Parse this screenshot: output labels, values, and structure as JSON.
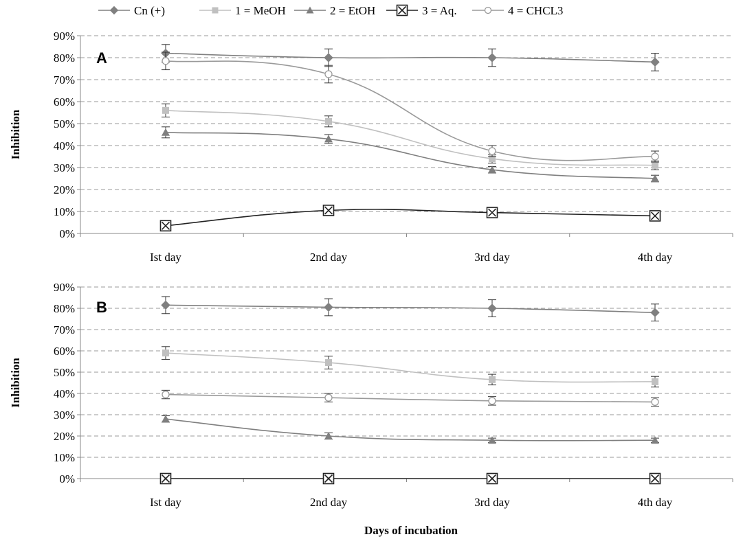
{
  "chart_data": {
    "type": "line",
    "xlabel": "Days of incubation",
    "legend": {
      "position": "top",
      "entries": [
        {
          "label": "Cn (+)",
          "marker": "diamond",
          "color": "#808080"
        },
        {
          "label": "1 = MeOH",
          "marker": "square",
          "color": "#c0c0c0"
        },
        {
          "label": "2 = EtOH",
          "marker": "triangle",
          "color": "#7f7f7f"
        },
        {
          "label": "3 = Aq.",
          "marker": "boxed-x",
          "color": "#3a3a3a"
        },
        {
          "label": "4 = CHCL3",
          "marker": "circle",
          "color": "#9a9a9a"
        }
      ]
    },
    "categories": [
      "Ist day",
      "2nd day",
      "3rd day",
      "4th day"
    ],
    "ylim": [
      0,
      90
    ],
    "ytick_labels": [
      "0%",
      "10%",
      "20%",
      "30%",
      "40%",
      "50%",
      "60%",
      "70%",
      "80%",
      "90%"
    ],
    "grid": "horizontal dashed",
    "panels": [
      {
        "letter": "A",
        "ylabel": "Inhibition",
        "series": [
          {
            "name": "Cn (+)",
            "values": [
              82,
              80,
              80,
              78
            ],
            "errors": [
              4,
              4,
              4,
              4
            ]
          },
          {
            "name": "1 = MeOH",
            "values": [
              56,
              51,
              34,
              31
            ],
            "errors": [
              3,
              2.5,
              2,
              2
            ]
          },
          {
            "name": "2 = EtOH",
            "values": [
              46,
              43,
              29,
              25
            ],
            "errors": [
              2.5,
              2,
              1.5,
              1.5
            ]
          },
          {
            "name": "3 = Aq.",
            "values": [
              3.5,
              10.5,
              9.5,
              8
            ],
            "errors": [
              0,
              0,
              0,
              0
            ]
          },
          {
            "name": "4 = CHCL3",
            "values": [
              78.5,
              72.5,
              37.5,
              35
            ],
            "errors": [
              4,
              4,
              2.5,
              2.5
            ]
          }
        ]
      },
      {
        "letter": "B",
        "ylabel": "Inhibition",
        "series": [
          {
            "name": "Cn (+)",
            "values": [
              81.5,
              80.5,
              80,
              78
            ],
            "errors": [
              4,
              4,
              4,
              4
            ]
          },
          {
            "name": "1 = MeOH",
            "values": [
              59,
              54.5,
              46.5,
              45.5
            ],
            "errors": [
              3,
              3,
              2.5,
              2.5
            ]
          },
          {
            "name": "2 = EtOH",
            "values": [
              28,
              20,
              18,
              18
            ],
            "errors": [
              1.5,
              1.5,
              1,
              1
            ]
          },
          {
            "name": "3 = Aq.",
            "values": [
              0,
              0,
              0,
              0
            ],
            "errors": [
              0,
              0,
              0,
              0
            ]
          },
          {
            "name": "4 = CHCL3",
            "values": [
              39.5,
              38,
              36.5,
              36
            ],
            "errors": [
              2,
              2,
              2,
              2
            ]
          }
        ]
      }
    ]
  }
}
